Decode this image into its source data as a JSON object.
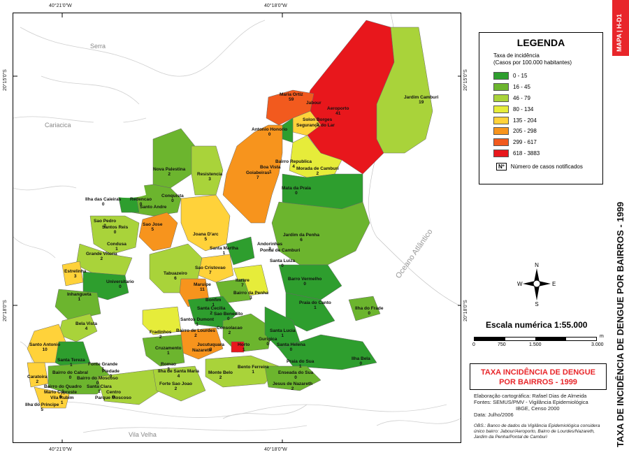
{
  "coordinates": {
    "top": [
      "40°21'0\"W",
      "40°18'0\"W"
    ],
    "bottom": [
      "40°21'0\"W",
      "40°18'0\"W"
    ],
    "left": [
      "20°15'0\"S",
      "20°18'0\"S"
    ],
    "right": [
      "20°15'0\"S",
      "20°18'0\"S"
    ]
  },
  "places": {
    "serra": "Serra",
    "cariacica": "Cariacica",
    "vila_velha": "Vila Velha",
    "ocean": "Oceano Atlântico"
  },
  "legend": {
    "title": "LEGENDA",
    "subtitle1": "Taxa de incidência",
    "subtitle2": "(Casos por 100.000 habitantes)",
    "classes": [
      {
        "label": "0 - 15",
        "color": "#2e9e2e"
      },
      {
        "label": "16 - 45",
        "color": "#6cb52e"
      },
      {
        "label": "46 - 79",
        "color": "#a9d33a"
      },
      {
        "label": "80 - 134",
        "color": "#e6ec3a"
      },
      {
        "label": "135 - 204",
        "color": "#ffd23a"
      },
      {
        "label": "205 - 298",
        "color": "#f7941d"
      },
      {
        "label": "299 - 617",
        "color": "#f25a1e"
      },
      {
        "label": "618 - 3883",
        "color": "#e8171c"
      }
    ],
    "count_symbol": "Nº",
    "count_label": "Número de casos notificados"
  },
  "scale": {
    "title": "Escala numérica  1:55.000",
    "labels": [
      "0",
      "750",
      "1.500",
      "3.000"
    ],
    "unit": "m"
  },
  "title_box": {
    "line1": "TAXA INCIDÊNCIA DE DENGUE",
    "line2": "POR BAIRROS - 1999"
  },
  "credits": {
    "line1": "Elaboração cartográfica: Rafael Dias de Almeida",
    "line2": "Fontes: SEMUS/PMV - Vigilância Epidemiológica",
    "line3": "IBGE, Censo 2000",
    "line4": "Data: Julho/2006"
  },
  "obs": "OBS.: Banco de dados da Vigilância Epidemiológica considera único bairro: Jabour/Aeroporto, Bairro de Lourdes/Nazareth, Jardim da Penha/Pontal de Camburi",
  "side": {
    "badge": "MAPA | H-D1",
    "title": "TAXA DE INCIDÊNCIA DE DENGUE POR BAIRROS - 1999"
  },
  "compass": {
    "n": "N",
    "s": "S",
    "e": "E",
    "w": "W"
  },
  "neighborhoods": [
    {
      "name": "Maria Ortiz",
      "cases": "59"
    },
    {
      "name": "Jabour",
      "cases": ""
    },
    {
      "name": "Aeroporto",
      "cases": "41"
    },
    {
      "name": "Jardim Camburi",
      "cases": "19"
    },
    {
      "name": "Solon Borges",
      "cases": "3"
    },
    {
      "name": "Segurança do Lar",
      "cases": ""
    },
    {
      "name": "Antonio Honorio",
      "cases": "0"
    },
    {
      "name": "Bairro Republica",
      "cases": "4"
    },
    {
      "name": "Boa Vista",
      "cases": "1"
    },
    {
      "name": "Morada de Camburi",
      "cases": "2"
    },
    {
      "name": "Goiabeiras",
      "cases": "7"
    },
    {
      "name": "Mata da Praia",
      "cases": "0"
    },
    {
      "name": "Nova Palestina",
      "cases": "2"
    },
    {
      "name": "Resistencia",
      "cases": "3"
    },
    {
      "name": "Ilha das Caieiras",
      "cases": "0"
    },
    {
      "name": "Conquista",
      "cases": "0"
    },
    {
      "name": "Redencao",
      "cases": "0"
    },
    {
      "name": "Santo Andre",
      "cases": ""
    },
    {
      "name": "Sao Pedro",
      "cases": "2"
    },
    {
      "name": "Santos Reis",
      "cases": "0"
    },
    {
      "name": "Sao Jose",
      "cases": "5"
    },
    {
      "name": "Joana D'arc",
      "cases": "5"
    },
    {
      "name": "Jardim da Penha",
      "cases": "6"
    },
    {
      "name": "Condusa",
      "cases": "1"
    },
    {
      "name": "Grande Vitoria",
      "cases": "2"
    },
    {
      "name": "Santa Martha",
      "cases": "1"
    },
    {
      "name": "Andorinhas",
      "cases": "3"
    },
    {
      "name": "Pontal de Camburi",
      "cases": ""
    },
    {
      "name": "Santa Luiza",
      "cases": "0"
    },
    {
      "name": "Estrelinha",
      "cases": "3"
    },
    {
      "name": "Tabuazeiro",
      "cases": "6"
    },
    {
      "name": "Sao Cristovao",
      "cases": "7"
    },
    {
      "name": "Universitario",
      "cases": "0"
    },
    {
      "name": "Maruipe",
      "cases": "11"
    },
    {
      "name": "Itarare",
      "cases": "7"
    },
    {
      "name": "Barro Vermelho",
      "cases": "0"
    },
    {
      "name": "Inhangueta",
      "cases": "1"
    },
    {
      "name": "Bairro da Penha",
      "cases": "3"
    },
    {
      "name": "Bonfim",
      "cases": "1"
    },
    {
      "name": "Praia do Canto",
      "cases": "1"
    },
    {
      "name": "Ilha do Frade",
      "cases": "0"
    },
    {
      "name": "Santa Cecilia",
      "cases": "2"
    },
    {
      "name": "Sao Benedito",
      "cases": "0"
    },
    {
      "name": "Santos Dumont",
      "cases": "1"
    },
    {
      "name": "Bela Vista",
      "cases": "4"
    },
    {
      "name": "Fradinhos",
      "cases": "2"
    },
    {
      "name": "Consolacao",
      "cases": "2"
    },
    {
      "name": "Bairro de Lourdes",
      "cases": "2"
    },
    {
      "name": "Santa Lucia",
      "cases": "1"
    },
    {
      "name": "Gurigica",
      "cases": "0"
    },
    {
      "name": "Santo Antonio",
      "cases": "10"
    },
    {
      "name": "Jucutuquara",
      "cases": "3"
    },
    {
      "name": "Horto",
      "cases": "1"
    },
    {
      "name": "Nazareth",
      "cases": ""
    },
    {
      "name": "Cruzamento",
      "cases": "1"
    },
    {
      "name": "Santa Helena",
      "cases": "0"
    },
    {
      "name": "Ilha Bela",
      "cases": "0"
    },
    {
      "name": "Santa Tereza",
      "cases": "1"
    },
    {
      "name": "Caratoira",
      "cases": "2"
    },
    {
      "name": "Fonte Grande",
      "cases": "1"
    },
    {
      "name": "Romao",
      "cases": "3"
    },
    {
      "name": "Ilha de Santa Maria",
      "cases": "4"
    },
    {
      "name": "Monte Belo",
      "cases": "2"
    },
    {
      "name": "Bento Ferreira",
      "cases": "1"
    },
    {
      "name": "Praia do Sua",
      "cases": "1"
    },
    {
      "name": "Enseada do Sua",
      "cases": "0"
    },
    {
      "name": "Bairro do Cabral",
      "cases": "0"
    },
    {
      "name": "Piedade",
      "cases": "0"
    },
    {
      "name": "Bairro do Moscoso",
      "cases": "0"
    },
    {
      "name": "Bairro do Quadro",
      "cases": "1"
    },
    {
      "name": "Santa Clara",
      "cases": "1"
    },
    {
      "name": "Mario Cypreste",
      "cases": "0"
    },
    {
      "name": "Vila Rubim",
      "cases": "1"
    },
    {
      "name": "Centro",
      "cases": "6"
    },
    {
      "name": "Parque Moscoso",
      "cases": ""
    },
    {
      "name": "Forte Sao Joao",
      "cases": "2"
    },
    {
      "name": "Jesus de Nazareth",
      "cases": "2"
    },
    {
      "name": "Ilha do Principe",
      "cases": "5"
    }
  ]
}
